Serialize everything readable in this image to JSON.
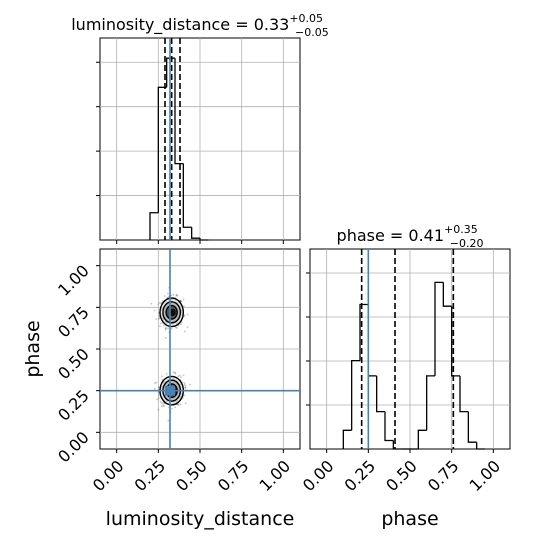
{
  "chart_data": {
    "type": "corner",
    "truth_color": "#4682b4",
    "params": [
      {
        "name": "luminosity_distance",
        "label": "luminosity_distance",
        "title_value": "0.33",
        "title_plus": "+0.05",
        "title_minus": "−0.05",
        "range": [
          -0.1,
          1.1
        ],
        "ticks": [
          "0.00",
          "0.25",
          "0.50",
          "0.75",
          "1.00"
        ],
        "tick_values": [
          0.0,
          0.25,
          0.5,
          0.75,
          1.0
        ],
        "truth": 0.32,
        "quantiles": [
          0.29,
          0.33,
          0.38
        ],
        "hist_bins": [
          [
            0.2,
            0.25
          ],
          [
            0.25,
            0.3
          ],
          [
            0.3,
            0.35
          ],
          [
            0.35,
            0.4
          ],
          [
            0.4,
            0.45
          ],
          [
            0.45,
            0.5
          ],
          [
            0.5,
            0.55
          ]
        ],
        "hist_values": [
          0.15,
          0.84,
          1.0,
          0.42,
          0.07,
          0.01,
          0.0
        ]
      },
      {
        "name": "phase",
        "label": "phase",
        "title_value": "0.41",
        "title_plus": "+0.35",
        "title_minus": "−0.20",
        "range": [
          -0.1,
          1.1
        ],
        "ticks": [
          "0.00",
          "0.25",
          "0.50",
          "0.75",
          "1.00"
        ],
        "tick_values": [
          0.0,
          0.25,
          0.5,
          0.75,
          1.0
        ],
        "truth": 0.25,
        "quantiles": [
          0.21,
          0.41,
          0.76
        ],
        "hist_bins": [
          [
            0.1,
            0.15
          ],
          [
            0.15,
            0.2
          ],
          [
            0.2,
            0.25
          ],
          [
            0.25,
            0.3
          ],
          [
            0.3,
            0.35
          ],
          [
            0.35,
            0.4
          ],
          [
            0.4,
            0.45
          ],
          [
            0.45,
            0.5
          ],
          [
            0.5,
            0.55
          ],
          [
            0.55,
            0.6
          ],
          [
            0.6,
            0.65
          ],
          [
            0.65,
            0.7
          ],
          [
            0.7,
            0.75
          ],
          [
            0.75,
            0.8
          ],
          [
            0.8,
            0.85
          ],
          [
            0.85,
            0.9
          ],
          [
            0.9,
            0.95
          ]
        ],
        "hist_values": [
          0.11,
          0.52,
          0.85,
          0.43,
          0.22,
          0.05,
          0.0,
          0.0,
          0.0,
          0.11,
          0.43,
          0.98,
          0.84,
          0.43,
          0.22,
          0.04,
          0.0
        ]
      }
    ],
    "joint": {
      "x_param": "luminosity_distance",
      "y_param": "phase",
      "modes": [
        {
          "x": 0.33,
          "y": 0.72,
          "sx": 0.035,
          "sy": 0.045
        },
        {
          "x": 0.33,
          "y": 0.25,
          "sx": 0.035,
          "sy": 0.045
        }
      ]
    },
    "grid": true
  }
}
